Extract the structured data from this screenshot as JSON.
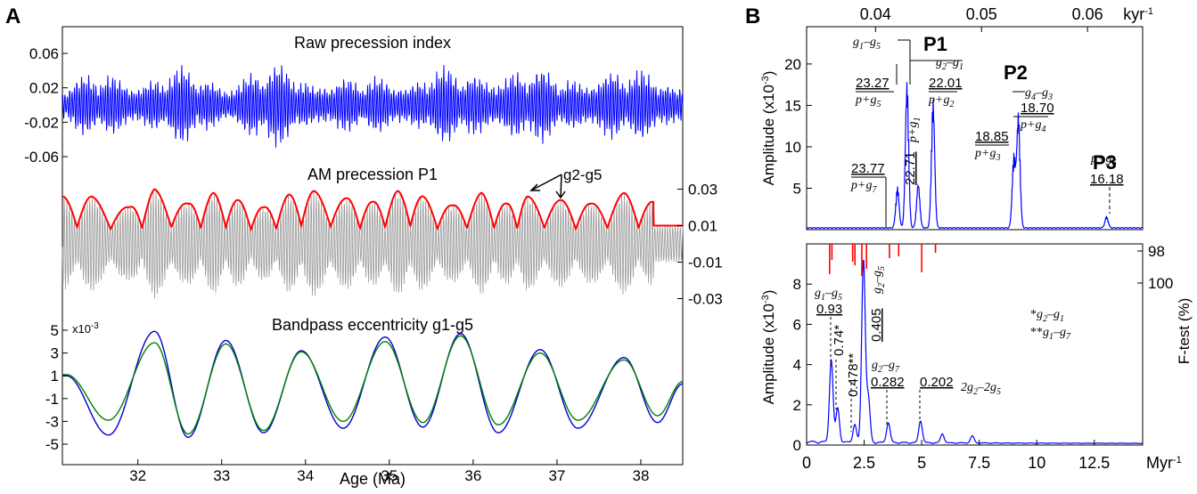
{
  "panels": {
    "A": "A",
    "B": "B"
  },
  "chart_data": [
    {
      "panel": "A",
      "type": "line",
      "xlabel": "Age (Ma)",
      "xlim": [
        31.1,
        38.5
      ],
      "xticks": [
        "32",
        "33",
        "34",
        "35",
        "36",
        "37",
        "38"
      ],
      "xtick_values": [
        32,
        33,
        34,
        35,
        36,
        37,
        38
      ],
      "subplots": [
        {
          "title": "Raw precession index",
          "yticks": [
            "0.06",
            "0.02",
            "-0.02",
            "-0.06"
          ],
          "ytick_values": [
            0.06,
            0.02,
            -0.02,
            -0.06
          ],
          "ylim": [
            -0.09,
            0.09
          ],
          "series": [
            {
              "color": "#0000ff",
              "amplitude_envelope": [
                0.03,
                0.045,
                0.04,
                0.05,
                0.035,
                0.055,
                0.045,
                0.035,
                0.04,
                0.05,
                0.045,
                0.055,
                0.04,
                0.05,
                0.045,
                0.04
              ]
            }
          ]
        },
        {
          "title": "AM precession P1",
          "annotation": "g2-g5",
          "yticks": [
            "0.03",
            "0.01",
            "-0.01",
            "-0.03"
          ],
          "ytick_values": [
            0.03,
            0.01,
            -0.01,
            -0.03
          ],
          "envelope_peaks_age": [
            31.45,
            31.9,
            32.2,
            32.6,
            32.9,
            33.2,
            33.5,
            33.8,
            34.1,
            34.5,
            34.8,
            35.1,
            35.4,
            35.75,
            36.1,
            36.4,
            36.65,
            37.05,
            37.4,
            37.8,
            38.15
          ],
          "envelope_peaks_value": [
            0.026,
            0.02,
            0.03,
            0.022,
            0.028,
            0.024,
            0.02,
            0.027,
            0.029,
            0.025,
            0.023,
            0.029,
            0.026,
            0.021,
            0.028,
            0.022,
            0.026,
            0.024,
            0.022,
            0.028,
            0.023
          ],
          "series": [
            {
              "color": "#ff0000"
            },
            {
              "color": "#999999"
            }
          ]
        },
        {
          "title": "Bandpass eccentricity g1-g5",
          "yscale_label": "x10",
          "yscale_exp": "-3",
          "yticks": [
            "5",
            "3",
            "1",
            "-1",
            "-3",
            "-5"
          ],
          "ytick_values": [
            5,
            3,
            1,
            -1,
            -3,
            -5
          ],
          "extrema_age": [
            31.15,
            31.65,
            32.2,
            32.6,
            33.05,
            33.5,
            33.95,
            34.45,
            34.95,
            35.4,
            35.85,
            36.3,
            36.8,
            37.25,
            37.8,
            38.2,
            38.5
          ],
          "series": [
            {
              "color": "#0000cc",
              "values": [
                1.0,
                -4.2,
                4.9,
                -4.4,
                4.1,
                -4.0,
                3.2,
                -3.6,
                4.4,
                -3.5,
                4.7,
                -4.0,
                3.3,
                -3.6,
                2.6,
                -3.1,
                0.3
              ]
            },
            {
              "color": "#008000",
              "values": [
                1.1,
                -2.9,
                3.9,
                -4.1,
                3.8,
                -3.8,
                3.1,
                -3.0,
                4.0,
                -3.1,
                4.5,
                -3.3,
                3.0,
                -2.9,
                2.4,
                -2.5,
                0.5
              ]
            }
          ]
        }
      ]
    },
    {
      "panel": "B-top",
      "type": "line",
      "ylabel_main": "Amplitude (x10",
      "ylabel_exp": "-3",
      "ylabel_close": ")",
      "top_axis_ticks": [
        "0.04",
        "0.05",
        "0.06"
      ],
      "top_axis_tick_values": [
        0.04,
        0.05,
        0.06
      ],
      "top_axis_unit_main": "kyr",
      "top_axis_unit_exp": "-1",
      "yticks": [
        "20",
        "15",
        "10",
        "5"
      ],
      "ytick_values": [
        20,
        15,
        10,
        5
      ],
      "xlim": [
        0.0335,
        0.0652
      ],
      "ylim": [
        0,
        24.5
      ],
      "peaks": [
        {
          "freq": 0.04207,
          "amp": 5.0
        },
        {
          "freq": 0.04297,
          "amp": 18.0
        },
        {
          "freq": 0.04403,
          "amp": 5.5
        },
        {
          "freq": 0.04543,
          "amp": 15.8
        },
        {
          "freq": 0.05305,
          "amp": 8.8
        },
        {
          "freq": 0.05348,
          "amp": 14.0
        },
        {
          "freq": 0.0618,
          "amp": 1.4
        }
      ],
      "series": [
        {
          "color": "#0000ff"
        }
      ],
      "group_labels": [
        "P1",
        "P2",
        "P3"
      ],
      "period_labels": [
        {
          "value": "23.77",
          "term": "p+g",
          "sub": "7"
        },
        {
          "value": "23.27",
          "term": "p+g",
          "sub": "5"
        },
        {
          "value": "22.71",
          "term": "p+g",
          "sub": "1"
        },
        {
          "value": "22.01",
          "term": "p+g",
          "sub": "2"
        },
        {
          "value": "18.85",
          "term": "p+g",
          "sub": "3"
        },
        {
          "value": "18.70",
          "term": "p+g",
          "sub": "4"
        },
        {
          "value": "16.18",
          "term": "p+g",
          "sub": "6"
        }
      ],
      "difference_labels": [
        "g1-g5",
        "g2-g1",
        "g4-g3"
      ]
    },
    {
      "panel": "B-bottom",
      "type": "line",
      "ylabel_main": "Amplitude (x10",
      "ylabel_exp": "-3",
      "ylabel_close": ")",
      "right_label": "F-test (%)",
      "right_ticks": [
        "98",
        "100"
      ],
      "xticks": [
        "0",
        "2.5",
        "5",
        "7.5",
        "10",
        "12.5"
      ],
      "xtick_values": [
        0,
        2.5,
        5,
        7.5,
        10,
        12.5
      ],
      "x_unit_main": "Myr",
      "x_unit_exp": "-1",
      "yticks": [
        "8",
        "6",
        "4",
        "2",
        "0"
      ],
      "ytick_values": [
        8,
        6,
        4,
        2,
        0
      ],
      "xlim": [
        0,
        14.6
      ],
      "ylim": [
        0,
        10
      ],
      "peaks": [
        {
          "freq": 1.07,
          "amp": 4.1
        },
        {
          "freq": 1.35,
          "amp": 1.7
        },
        {
          "freq": 2.09,
          "amp": 0.9
        },
        {
          "freq": 2.47,
          "amp": 9.1
        },
        {
          "freq": 2.68,
          "amp": 2.2
        },
        {
          "freq": 3.55,
          "amp": 1.0
        },
        {
          "freq": 4.95,
          "amp": 1.1
        },
        {
          "freq": 5.9,
          "amp": 0.45
        },
        {
          "freq": 7.2,
          "amp": 0.35
        }
      ],
      "ftest_freqs": [
        1.0,
        1.1,
        2.0,
        2.1,
        2.4,
        2.6,
        3.6,
        4.0,
        5.0,
        5.6
      ],
      "ftest_levels": [
        0.85,
        0.45,
        0.5,
        0.6,
        0.9,
        0.7,
        0.4,
        0.35,
        0.8,
        0.25
      ],
      "series": [
        {
          "color": "#0000ff"
        },
        {
          "color": "#ff0000"
        }
      ],
      "period_labels": [
        "0.93",
        "0.74*",
        "0.478**",
        "0.405",
        "0.282",
        "0.202"
      ],
      "term_labels": [
        "g1-g5",
        "g2-g5",
        "g2-g7",
        "2g2-2g5"
      ],
      "legend_lines": [
        "*g2-g1",
        "**g1-g7"
      ]
    }
  ]
}
